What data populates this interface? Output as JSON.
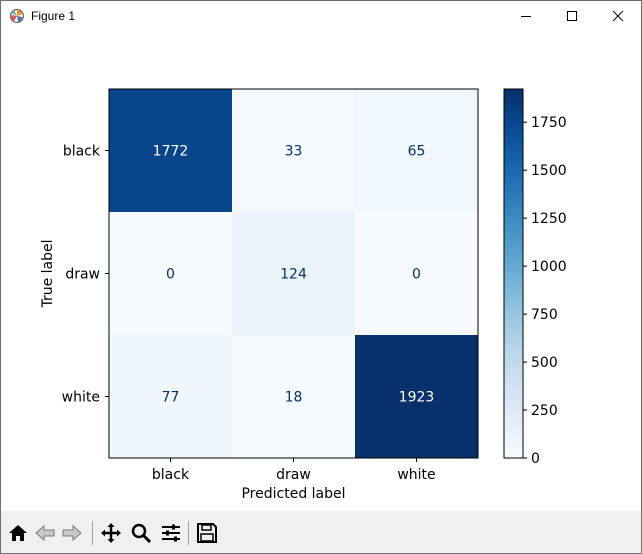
{
  "window": {
    "title": "Figure 1"
  },
  "toolbar": {
    "buttons": [
      {
        "name": "home-icon"
      },
      {
        "name": "back-icon"
      },
      {
        "name": "forward-icon"
      },
      {
        "name": "pan-icon"
      },
      {
        "name": "zoom-icon"
      },
      {
        "name": "configure-subplots-icon"
      },
      {
        "name": "save-icon"
      }
    ]
  },
  "chart_data": {
    "type": "heatmap",
    "title": "",
    "xlabel": "Predicted label",
    "ylabel": "True label",
    "x_categories": [
      "black",
      "draw",
      "white"
    ],
    "y_categories": [
      "black",
      "draw",
      "white"
    ],
    "values": [
      [
        1772,
        33,
        65
      ],
      [
        0,
        124,
        0
      ],
      [
        77,
        18,
        1923
      ]
    ],
    "colormap": "Blues",
    "colorbar": {
      "min": 0,
      "max": 1923,
      "ticks": [
        0,
        250,
        500,
        750,
        1000,
        1250,
        1500,
        1750
      ]
    },
    "colors": {
      "text_dark_cell": "#ffffff",
      "text_light_cell": "#08306b"
    }
  }
}
